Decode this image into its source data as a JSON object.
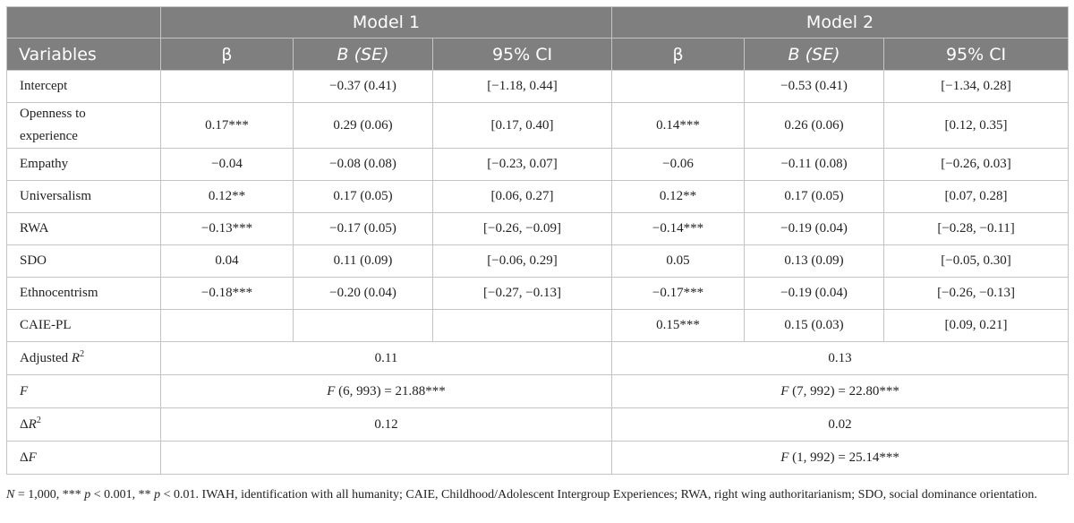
{
  "header": {
    "model1": "Model 1",
    "model2": "Model 2",
    "variables": "Variables",
    "beta": "β",
    "b_se": "B (SE)",
    "ci": "95% CI"
  },
  "rows": [
    {
      "label": "Intercept",
      "m1": [
        "",
        "−0.37 (0.41)",
        "[−1.18, 0.44]"
      ],
      "m2": [
        "",
        "−0.53 (0.41)",
        "[−1.34, 0.28]"
      ]
    },
    {
      "label_line1": "Openness to",
      "label_line2": "experience",
      "m1": [
        "0.17***",
        "0.29 (0.06)",
        "[0.17, 0.40]"
      ],
      "m2": [
        "0.14***",
        "0.26 (0.06)",
        "[0.12, 0.35]"
      ]
    },
    {
      "label": "Empathy",
      "m1": [
        "−0.04",
        "−0.08 (0.08)",
        "[−0.23, 0.07]"
      ],
      "m2": [
        "−0.06",
        "−0.11 (0.08)",
        "[−0.26, 0.03]"
      ]
    },
    {
      "label": "Universalism",
      "m1": [
        "0.12**",
        "0.17 (0.05)",
        "[0.06, 0.27]"
      ],
      "m2": [
        "0.12**",
        "0.17 (0.05)",
        "[0.07, 0.28]"
      ]
    },
    {
      "label": "RWA",
      "m1": [
        "−0.13***",
        "−0.17 (0.05)",
        "[−0.26, −0.09]"
      ],
      "m2": [
        "−0.14***",
        "−0.19 (0.04)",
        "[−0.28, −0.11]"
      ]
    },
    {
      "label": "SDO",
      "m1": [
        "0.04",
        "0.11 (0.09)",
        "[−0.06, 0.29]"
      ],
      "m2": [
        "0.05",
        "0.13 (0.09)",
        "[−0.05, 0.30]"
      ]
    },
    {
      "label": "Ethnocentrism",
      "m1": [
        "−0.18***",
        "−0.20 (0.04)",
        "[−0.27, −0.13]"
      ],
      "m2": [
        "−0.17***",
        "−0.19 (0.04)",
        "[−0.26, −0.13]"
      ]
    },
    {
      "label": "CAIE-PL",
      "m1": [
        "",
        "",
        ""
      ],
      "m2": [
        "0.15***",
        "0.15 (0.03)",
        "[0.09, 0.21]"
      ]
    }
  ],
  "stats": {
    "adj_r2": {
      "label_pre": "Adjusted ",
      "label_var": "R",
      "label_sup": "2",
      "m1": "0.11",
      "m2": "0.13"
    },
    "f": {
      "label": "F",
      "m1_var": "F",
      "m1_rest": " (6, 993) = 21.88***",
      "m2_var": "F",
      "m2_rest": " (7, 992) = 22.80***"
    },
    "delta_r2": {
      "label_delta": "Δ",
      "label_var": "R",
      "label_sup": "2",
      "m1": "0.12",
      "m2": "0.02"
    },
    "delta_f": {
      "label_delta": "Δ",
      "label_var": "F",
      "m1": "",
      "m2_var": "F",
      "m2_rest": " (1, 992) = 25.14***"
    }
  },
  "note": {
    "n_var": "N",
    "n_rest": " = 1,000, *** ",
    "p1_var": "p",
    "p1_rest": " < 0.001, ** ",
    "p2_var": "p",
    "p2_rest": " < 0.01. IWAH, identification with all humanity; CAIE, Childhood/Adolescent Intergroup Experiences; RWA, right wing authoritarianism; SDO, social dominance orientation."
  }
}
